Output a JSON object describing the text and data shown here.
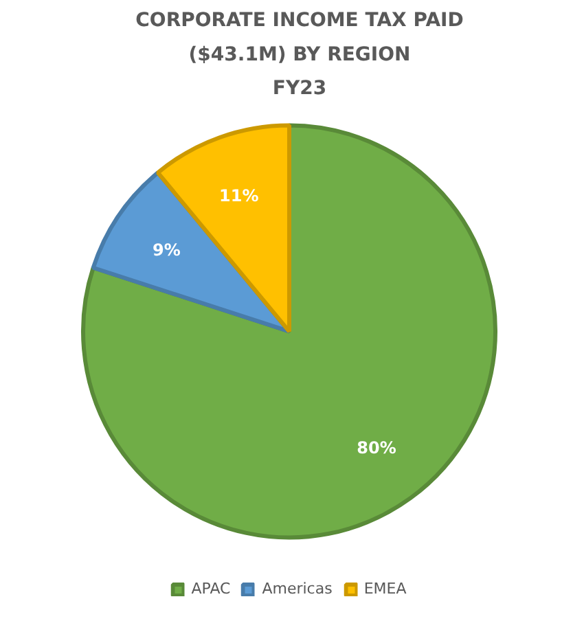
{
  "chart_data": {
    "type": "pie",
    "title": "CORPORATE INCOME TAX PAID\n($43.1M) BY REGION\nFY23",
    "categories": [
      "APAC",
      "Americas",
      "EMEA"
    ],
    "values": [
      80,
      9,
      11
    ],
    "colors": [
      "#70ad47",
      "#5b9bd5",
      "#ffc000"
    ],
    "value_labels": [
      "80%",
      "9%",
      "11%"
    ],
    "legend": "bottom"
  }
}
